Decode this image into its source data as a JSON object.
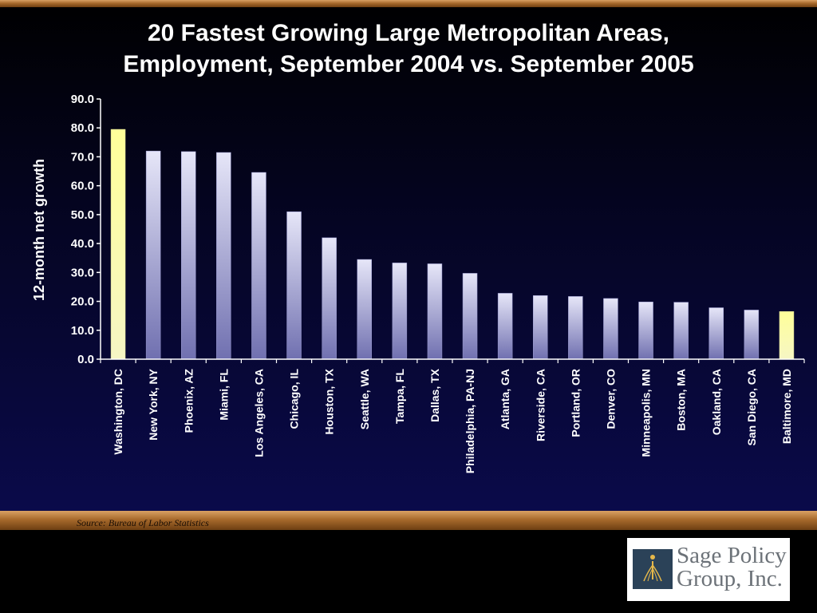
{
  "title_line1": "20 Fastest Growing Large Metropolitan Areas,",
  "title_line2": "Employment, September 2004 vs. September 2005",
  "source": "Source: Bureau of Labor Statistics",
  "logo": {
    "line1": "Sage Policy",
    "line2": "Group, Inc.",
    "icon": "sage-policy-logo-icon"
  },
  "colors": {
    "bar": "#b8b8e0",
    "highlight": "#ffff99",
    "background": "#0a0a4a",
    "accent": "#a86a2c"
  },
  "chart_data": {
    "type": "bar",
    "title": "20 Fastest Growing Large Metropolitan Areas, Employment, September 2004 vs. September 2005",
    "xlabel": "",
    "ylabel": "12-month net growth",
    "ylim": [
      0,
      90
    ],
    "yticks": [
      "0.0",
      "10.0",
      "20.0",
      "30.0",
      "40.0",
      "50.0",
      "60.0",
      "70.0",
      "80.0",
      "90.0"
    ],
    "grid": false,
    "categories": [
      "Washington, DC",
      "New York, NY",
      "Phoenix, AZ",
      "Miami, FL",
      "Los Angeles, CA",
      "Chicago, IL",
      "Houston, TX",
      "Seattle, WA",
      "Tampa, FL",
      "Dallas, TX",
      "Philadelphia, PA-NJ",
      "Atlanta, GA",
      "Riverside, CA",
      "Portland, OR",
      "Denver, CO",
      "Minneapolis, MN",
      "Boston, MA",
      "Oakland, CA",
      "San Diego, CA",
      "Baltimore, MD"
    ],
    "values": [
      79.5,
      72.0,
      71.8,
      71.5,
      64.6,
      51.0,
      42.0,
      34.5,
      33.3,
      33.0,
      29.7,
      22.8,
      22.0,
      21.7,
      21.0,
      19.8,
      19.7,
      17.8,
      17.0,
      16.5
    ],
    "highlighted": [
      "Washington, DC",
      "Baltimore, MD"
    ]
  }
}
